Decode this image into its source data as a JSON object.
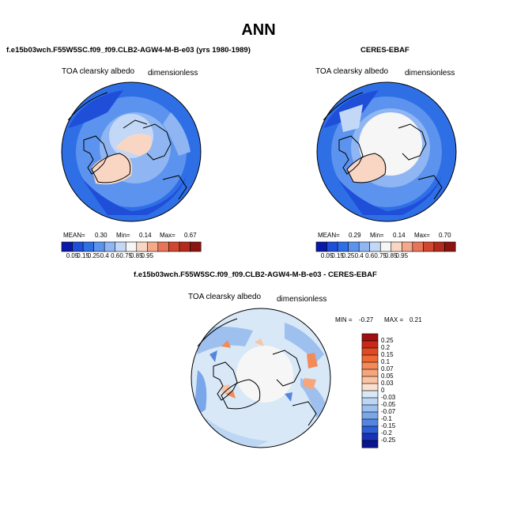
{
  "figure": {
    "title": "ANN"
  },
  "panels": [
    {
      "title": "f.e15b03wch.F55W5SC.f09_f09.CLB2-AGW4-M-B-e03 (yrs 1980-1989)",
      "variable": "TOA clearsky albedo",
      "units": "dimensionless",
      "mean_label": "MEAN=",
      "mean": "0.30",
      "min_label": "Min=",
      "min": "0.14",
      "max_label": "Max=",
      "max": "0.67"
    },
    {
      "title": "CERES-EBAF",
      "variable": "TOA clearsky albedo",
      "units": "dimensionless",
      "mean_label": "MEAN=",
      "mean": "0.29",
      "min_label": "Min=",
      "min": "0.14",
      "max_label": "Max=",
      "max": "0.70"
    },
    {
      "title": "f.e15b03wch.F55W5SC.f09_f09.CLB2-AGW4-M-B-e03 - CERES-EBAF",
      "variable": "TOA clearsky albedo",
      "units": "dimensionless",
      "min_label": "MIN =",
      "min": "-0.27",
      "max_label": "MAX =",
      "max": "0.21"
    }
  ],
  "colorbar_main": {
    "labels": [
      "0.05",
      "0.15",
      "0.25",
      "0.4",
      "0.6",
      "0.75",
      "0.85",
      "0.95"
    ],
    "colors": [
      "#0a1aa8",
      "#1f4fd8",
      "#2f6fe6",
      "#5c93ee",
      "#8fb6f2",
      "#c3d8f7",
      "#f6f6f6",
      "#f9d6c4",
      "#f3a98a",
      "#e8755a",
      "#d2472f",
      "#b22b1d",
      "#8c1410"
    ]
  },
  "colorbar_diff": {
    "labels": [
      "0.25",
      "0.2",
      "0.15",
      "0.1",
      "0.07",
      "0.05",
      "0.03",
      "0",
      "-0.03",
      "-0.05",
      "-0.07",
      "-0.1",
      "-0.15",
      "-0.2",
      "-0.25"
    ],
    "colors": [
      "#a01010",
      "#c8281a",
      "#e04a22",
      "#ee6a32",
      "#f48a58",
      "#f6a67a",
      "#f9c4a4",
      "#fbe0d0",
      "#d8e8f7",
      "#bcd6f4",
      "#9dc0ef",
      "#7aa6ea",
      "#5486e0",
      "#2f5fd6",
      "#1734b8",
      "#0a1490"
    ]
  }
}
